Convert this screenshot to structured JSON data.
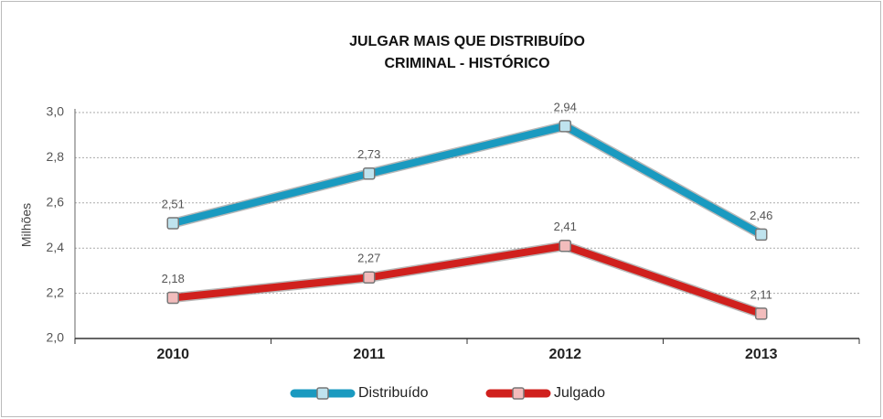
{
  "chart_data": {
    "type": "line",
    "title": "JULGAR MAIS QUE DISTRIBUÍDO",
    "subtitle": "CRIMINAL - HISTÓRICO",
    "y_label": "Milhões",
    "categories": [
      "2010",
      "2011",
      "2012",
      "2013"
    ],
    "series": [
      {
        "name": "Distribuído",
        "color": "#1a9ac0",
        "values": [
          2.51,
          2.73,
          2.94,
          2.46
        ],
        "value_labels": [
          "2,51",
          "2,73",
          "2,94",
          "2,46"
        ]
      },
      {
        "name": "Julgado",
        "color": "#d0201d",
        "values": [
          2.18,
          2.27,
          2.41,
          2.11
        ],
        "value_labels": [
          "2,18",
          "2,27",
          "2,41",
          "2,11"
        ]
      }
    ],
    "ylim": [
      2.0,
      3.0
    ],
    "yticks": [
      {
        "value": 2.0,
        "label": "2,0"
      },
      {
        "value": 2.2,
        "label": "2,2"
      },
      {
        "value": 2.4,
        "label": "2,4"
      },
      {
        "value": 2.6,
        "label": "2,6"
      },
      {
        "value": 2.8,
        "label": "2,8"
      },
      {
        "value": 3.0,
        "label": "3,0"
      }
    ],
    "grid": true,
    "legend": "bottom"
  }
}
